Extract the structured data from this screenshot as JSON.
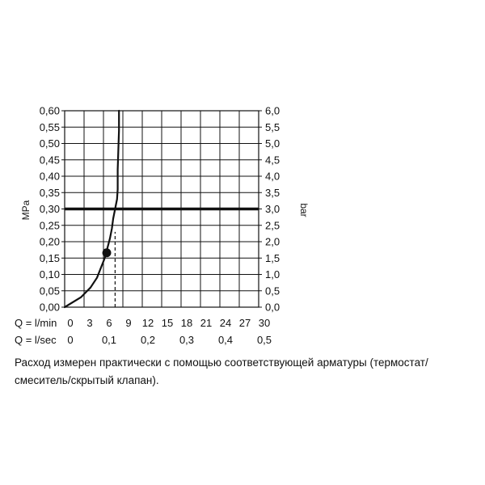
{
  "chart_data": {
    "type": "line",
    "ylabel_left": "MPa",
    "ylabel_right": "bar",
    "y_left_ticks": [
      "0,00",
      "0,05",
      "0,10",
      "0,15",
      "0,20",
      "0,25",
      "0,30",
      "0,35",
      "0,40",
      "0,45",
      "0,50",
      "0,55",
      "0,60"
    ],
    "y_right_ticks": [
      "0,0",
      "0,5",
      "1,0",
      "1,5",
      "2,0",
      "2,5",
      "3,0",
      "3,5",
      "4,0",
      "4,5",
      "5,0",
      "5,5",
      "6,0"
    ],
    "ylim": [
      0,
      0.6
    ],
    "x_lmin_label": "Q = l/min",
    "x_lmin_ticks": [
      "0",
      "3",
      "6",
      "9",
      "12",
      "15",
      "18",
      "21",
      "24",
      "27",
      "30"
    ],
    "x_lsec_label": "Q = l/sec",
    "x_lsec_ticks": [
      "0",
      "0,1",
      "0,2",
      "0,3",
      "0,4",
      "0,5"
    ],
    "xlim": [
      0,
      30
    ],
    "grid": true,
    "series": [
      {
        "x": [
          0,
          2.5,
          4.0,
          5.0,
          5.6,
          6.2,
          6.6,
          7.0,
          7.3,
          7.5,
          7.8,
          8.1,
          8.2,
          8.2,
          8.3,
          8.4,
          8.4
        ],
        "y": [
          0.0,
          0.03,
          0.06,
          0.09,
          0.12,
          0.15,
          0.18,
          0.21,
          0.24,
          0.27,
          0.3,
          0.33,
          0.36,
          0.42,
          0.48,
          0.54,
          0.6
        ],
        "color": "#111111"
      }
    ],
    "reference_line": {
      "y": 0.3
    },
    "marker": {
      "x": 6.5,
      "y": 0.166
    },
    "dashed_line": {
      "x": 7.8,
      "y_from": 0.0,
      "y_to": 0.23
    }
  },
  "note": "Расход измерен практически с помощью соответствующей арматуры (термостат/смеситель/скрытый клапан)."
}
